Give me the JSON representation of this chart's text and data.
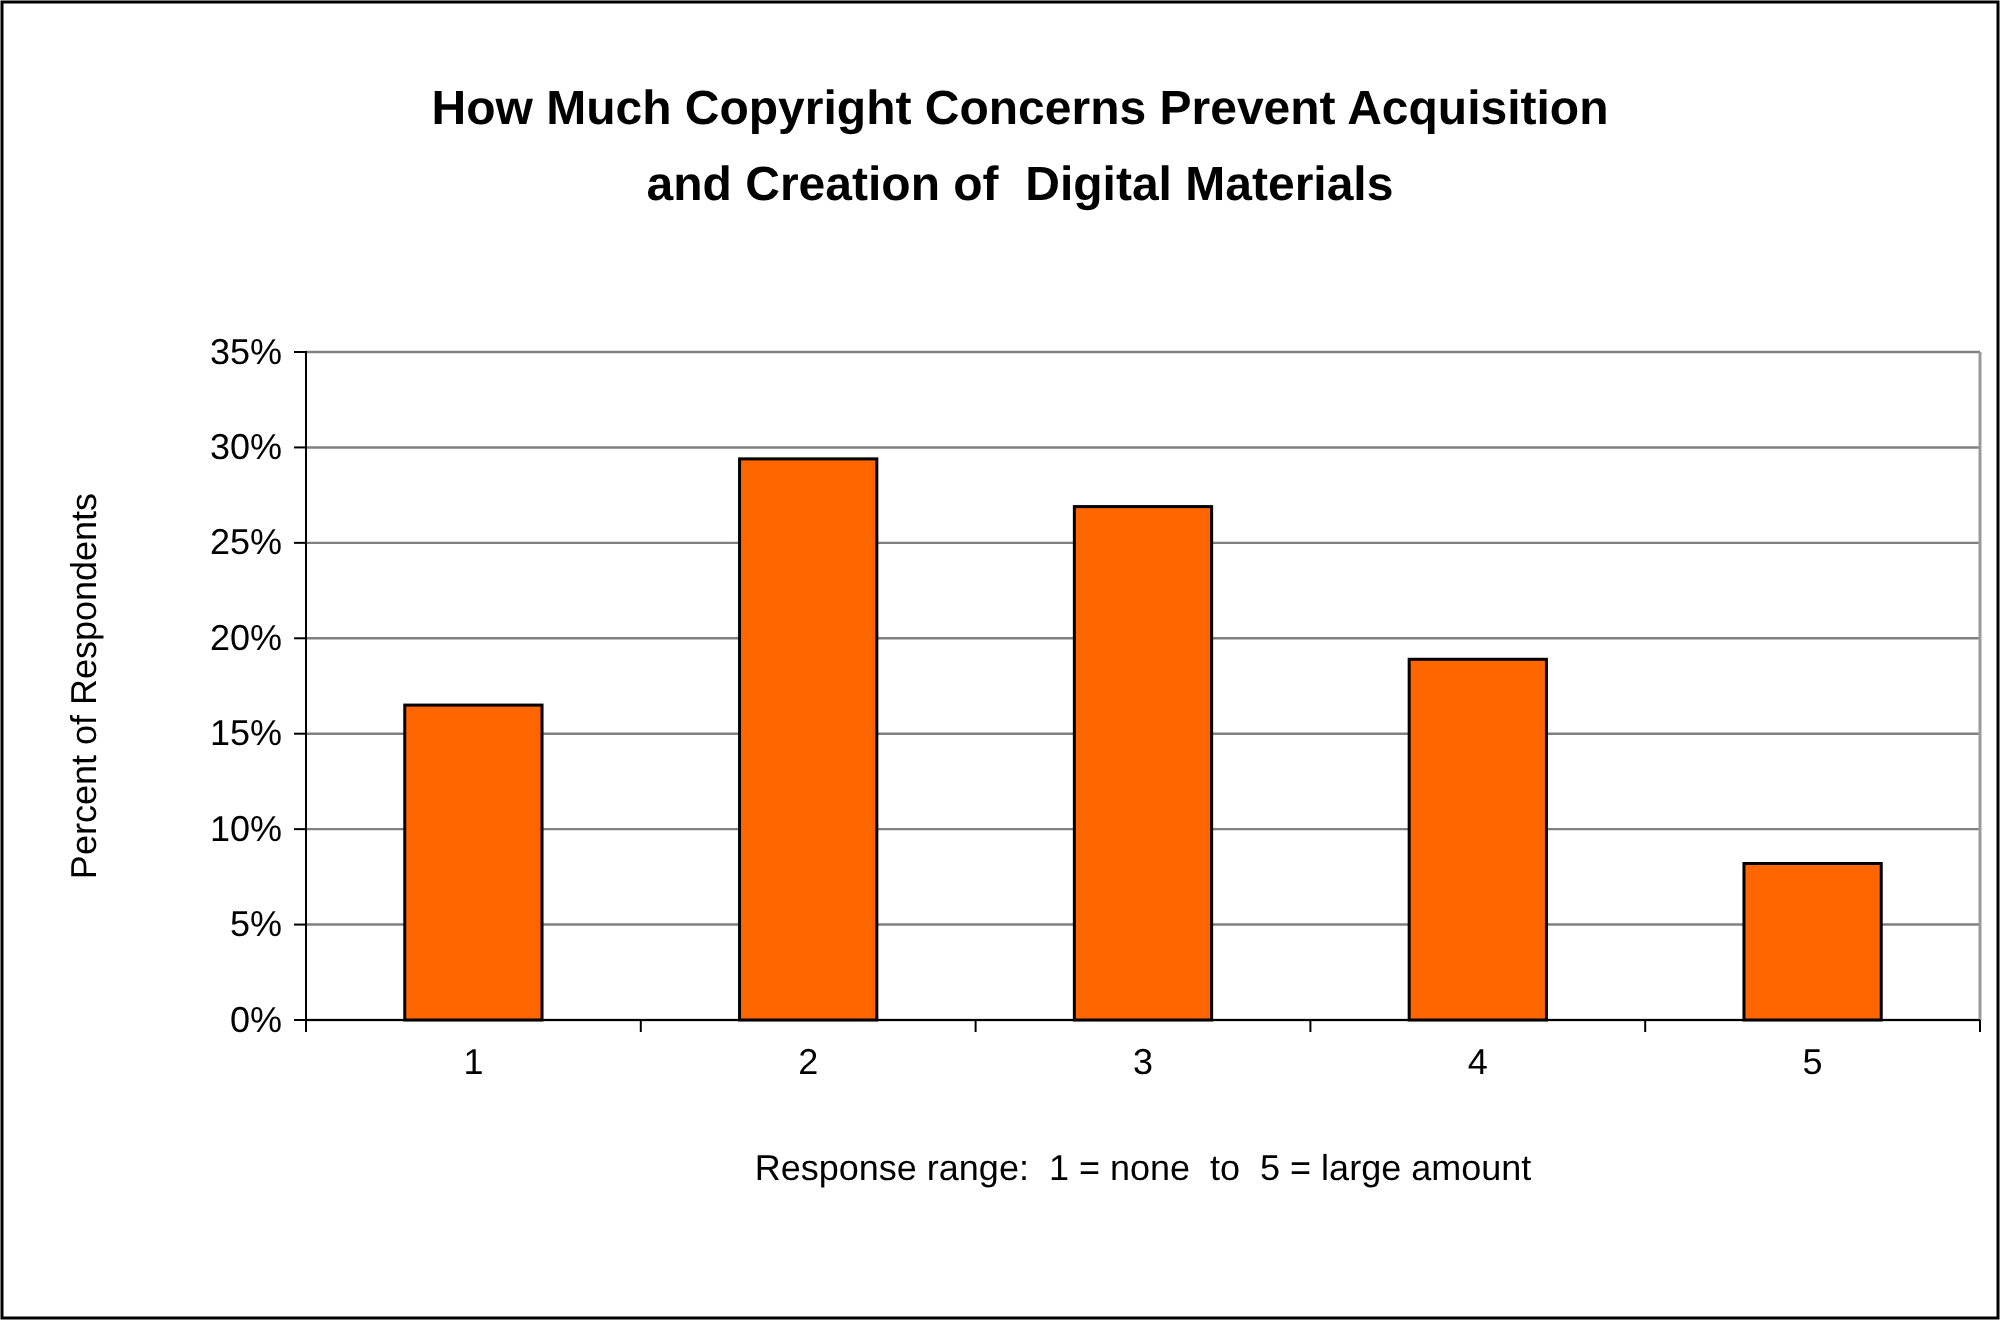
{
  "chart_data": {
    "type": "bar",
    "title": "How Much Copyright Concerns Prevent Acquisition and Creation of  Digital Materials",
    "xlabel": "Response range:  1 = none  to  5 = large amount",
    "ylabel": "Percent of Respondents",
    "categories": [
      "1",
      "2",
      "3",
      "4",
      "5"
    ],
    "values": [
      16.5,
      29.4,
      26.9,
      18.9,
      8.2
    ],
    "color": "#ff6600",
    "ylim": [
      0,
      35
    ],
    "yticks": [
      {
        "value": 0,
        "label": "0%"
      },
      {
        "value": 5,
        "label": "5%"
      },
      {
        "value": 10,
        "label": "10%"
      },
      {
        "value": 15,
        "label": "15%"
      },
      {
        "value": 20,
        "label": "20%"
      },
      {
        "value": 25,
        "label": "25%"
      },
      {
        "value": 30,
        "label": "30%"
      },
      {
        "value": 35,
        "label": "35%"
      }
    ],
    "grid": "y"
  }
}
